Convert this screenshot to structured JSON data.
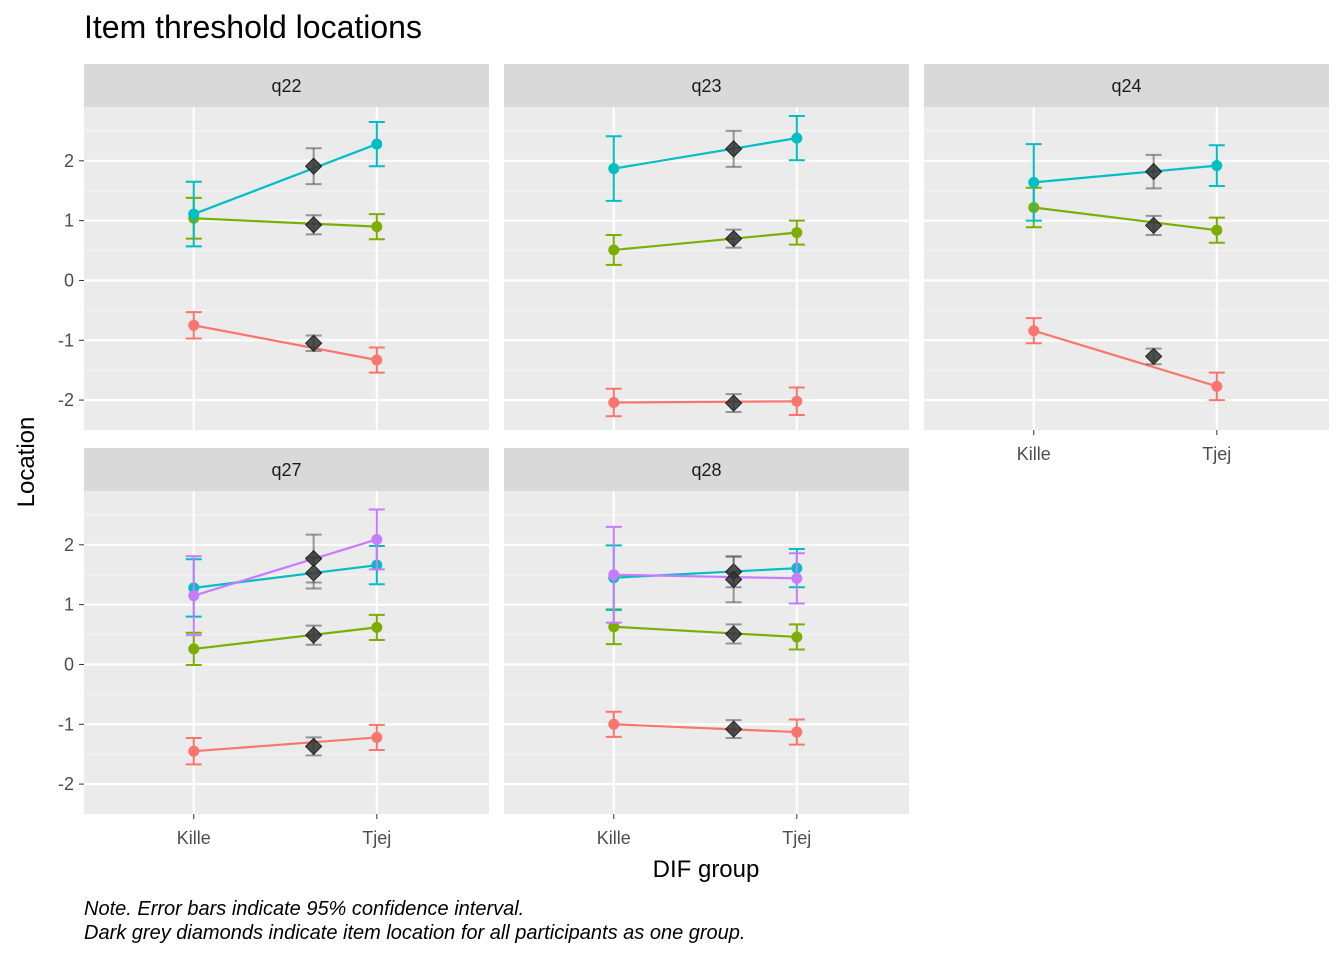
{
  "chart_data": {
    "type": "line",
    "title": "Item threshold locations",
    "xlabel": "DIF group",
    "ylabel": "Location",
    "categories": [
      "Kille",
      "Tjej"
    ],
    "ylim": [
      -2.5,
      2.9
    ],
    "yticks": [
      -2,
      -1,
      0,
      1,
      2
    ],
    "grid": true,
    "legend": "none",
    "threshold_colors": [
      "#F8766D",
      "#7CAE00",
      "#00BFC4",
      "#C77CFF"
    ],
    "overall_marker_color": "#333333",
    "notes": [
      "Note. Error bars indicate 95% confidence interval.",
      "Dark grey diamonds indicate item location for all participants as one group."
    ],
    "panels": [
      {
        "name": "q22",
        "thresholds": [
          {
            "values": [
              -0.75,
              -1.33
            ],
            "ci": [
              [
                -0.97,
                -0.53
              ],
              [
                -1.54,
                -1.12
              ]
            ],
            "overall": -1.05,
            "overall_ci": [
              -1.18,
              -0.92
            ]
          },
          {
            "values": [
              1.04,
              0.9
            ],
            "ci": [
              [
                0.7,
                1.38
              ],
              [
                0.69,
                1.11
              ]
            ],
            "overall": 0.93,
            "overall_ci": [
              0.77,
              1.09
            ]
          },
          {
            "values": [
              1.11,
              2.28
            ],
            "ci": [
              [
                0.57,
                1.65
              ],
              [
                1.91,
                2.65
              ]
            ],
            "overall": 1.91,
            "overall_ci": [
              1.61,
              2.21
            ]
          }
        ]
      },
      {
        "name": "q23",
        "thresholds": [
          {
            "values": [
              -2.04,
              -2.02
            ],
            "ci": [
              [
                -2.27,
                -1.81
              ],
              [
                -2.25,
                -1.79
              ]
            ],
            "overall": -2.05,
            "overall_ci": [
              -2.2,
              -1.9
            ]
          },
          {
            "values": [
              0.51,
              0.8
            ],
            "ci": [
              [
                0.26,
                0.76
              ],
              [
                0.6,
                1.0
              ]
            ],
            "overall": 0.7,
            "overall_ci": [
              0.55,
              0.85
            ]
          },
          {
            "values": [
              1.87,
              2.38
            ],
            "ci": [
              [
                1.33,
                2.41
              ],
              [
                2.01,
                2.75
              ]
            ],
            "overall": 2.2,
            "overall_ci": [
              1.9,
              2.5
            ]
          }
        ]
      },
      {
        "name": "q24",
        "thresholds": [
          {
            "values": [
              -0.84,
              -1.77
            ],
            "ci": [
              [
                -1.05,
                -0.63
              ],
              [
                -2.0,
                -1.54
              ]
            ],
            "overall": -1.27,
            "overall_ci": [
              -1.4,
              -1.14
            ]
          },
          {
            "values": [
              1.22,
              0.84
            ],
            "ci": [
              [
                0.89,
                1.55
              ],
              [
                0.63,
                1.05
              ]
            ],
            "overall": 0.92,
            "overall_ci": [
              0.76,
              1.08
            ]
          },
          {
            "values": [
              1.64,
              1.92
            ],
            "ci": [
              [
                1.0,
                2.28
              ],
              [
                1.58,
                2.26
              ]
            ],
            "overall": 1.82,
            "overall_ci": [
              1.54,
              2.1
            ]
          }
        ]
      },
      {
        "name": "q27",
        "thresholds": [
          {
            "values": [
              -1.45,
              -1.22
            ],
            "ci": [
              [
                -1.67,
                -1.23
              ],
              [
                -1.43,
                -1.01
              ]
            ],
            "overall": -1.37,
            "overall_ci": [
              -1.52,
              -1.22
            ]
          },
          {
            "values": [
              0.26,
              0.62
            ],
            "ci": [
              [
                -0.01,
                0.53
              ],
              [
                0.41,
                0.83
              ]
            ],
            "overall": 0.49,
            "overall_ci": [
              0.33,
              0.65
            ]
          },
          {
            "values": [
              1.28,
              1.66
            ],
            "ci": [
              [
                0.8,
                1.76
              ],
              [
                1.34,
                1.98
              ]
            ],
            "overall": 1.53,
            "overall_ci": [
              1.27,
              1.79
            ]
          },
          {
            "values": [
              1.15,
              2.09
            ],
            "ci": [
              [
                0.49,
                1.81
              ],
              [
                1.59,
                2.59
              ]
            ],
            "overall": 1.77,
            "overall_ci": [
              1.37,
              2.17
            ]
          }
        ]
      },
      {
        "name": "q28",
        "thresholds": [
          {
            "values": [
              -1.0,
              -1.13
            ],
            "ci": [
              [
                -1.21,
                -0.79
              ],
              [
                -1.34,
                -0.92
              ]
            ],
            "overall": -1.08,
            "overall_ci": [
              -1.23,
              -0.93
            ]
          },
          {
            "values": [
              0.63,
              0.46
            ],
            "ci": [
              [
                0.34,
                0.92
              ],
              [
                0.25,
                0.67
              ]
            ],
            "overall": 0.51,
            "overall_ci": [
              0.35,
              0.67
            ]
          },
          {
            "values": [
              1.45,
              1.61
            ],
            "ci": [
              [
                0.91,
                1.99
              ],
              [
                1.29,
                1.93
              ]
            ],
            "overall": 1.55,
            "overall_ci": [
              1.29,
              1.81
            ]
          },
          {
            "values": [
              1.5,
              1.44
            ],
            "ci": [
              [
                0.7,
                2.3
              ],
              [
                1.02,
                1.86
              ]
            ],
            "overall": 1.42,
            "overall_ci": [
              1.04,
              1.8
            ]
          }
        ]
      }
    ]
  }
}
